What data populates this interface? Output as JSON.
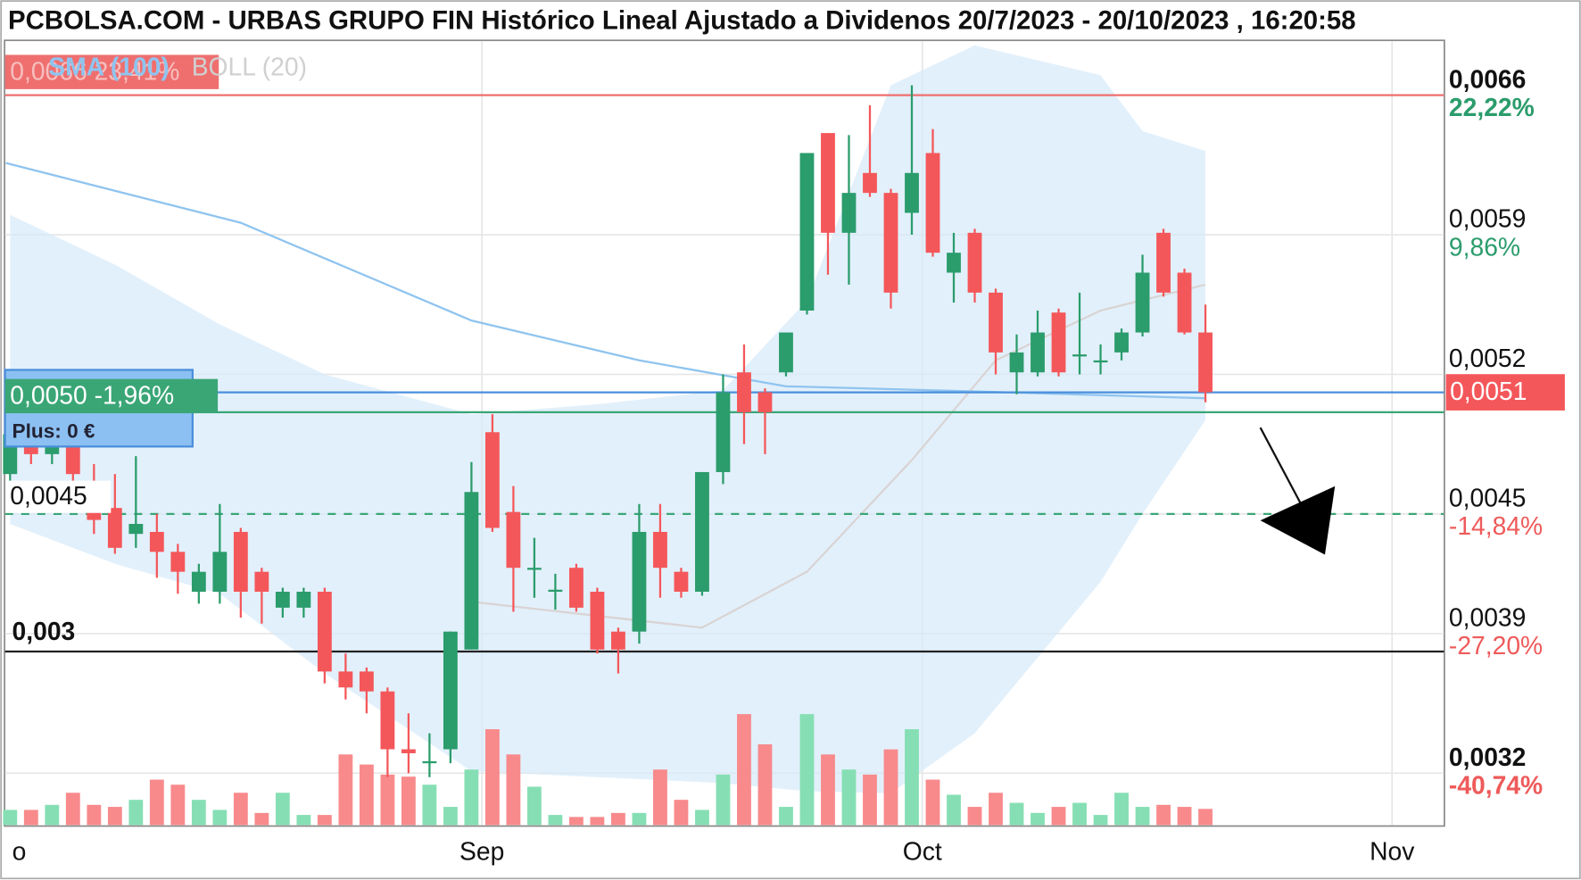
{
  "chart_data": {
    "type": "candlestick",
    "title": "PCBOLSA.COM - URBAS GRUPO FIN Histórico Lineal Ajustado a Dividenos 20/7/2023 - 20/10/2023 , 16:20:58",
    "open": [
      0.0047,
      0.00495,
      0.0048,
      0.0049,
      0.00458,
      0.00453,
      0.0044,
      0.00441,
      0.00431,
      0.00411,
      0.00411,
      0.00441,
      0.00421,
      0.00403,
      0.00403,
      0.00411,
      0.00371,
      0.00371,
      0.00361,
      0.00332,
      0.00325,
      0.00332,
      0.00382,
      0.00491,
      0.00451,
      0.00422,
      0.00411,
      0.00423,
      0.00411,
      0.00391,
      0.00391,
      0.00441,
      0.00421,
      0.00411,
      0.00471,
      0.00521,
      0.00511,
      0.00521,
      0.00552,
      0.00641,
      0.00591,
      0.00621,
      0.00611,
      0.00601,
      0.00631,
      0.00571,
      0.00591,
      0.00561,
      0.00521,
      0.00521,
      0.00551,
      0.00529,
      0.00526,
      0.00531,
      0.00541,
      0.00591,
      0.00571,
      0.00541
    ],
    "high": [
      0.005,
      0.005,
      0.00495,
      0.00495,
      0.00475,
      0.0047,
      0.00479,
      0.0045,
      0.00435,
      0.00425,
      0.00455,
      0.00443,
      0.00423,
      0.00413,
      0.00413,
      0.00413,
      0.0038,
      0.00373,
      0.00363,
      0.0035,
      0.0034,
      0.00391,
      0.00476,
      0.005,
      0.00464,
      0.00438,
      0.0042,
      0.00425,
      0.00413,
      0.00393,
      0.00455,
      0.00455,
      0.00423,
      0.00471,
      0.0052,
      0.00535,
      0.00513,
      0.00541,
      0.00631,
      0.00641,
      0.0064,
      0.00655,
      0.00613,
      0.00665,
      0.00643,
      0.00591,
      0.00593,
      0.00563,
      0.0054,
      0.00552,
      0.00553,
      0.00561,
      0.00535,
      0.00543,
      0.0058,
      0.00593,
      0.00573,
      0.00555
    ],
    "low": [
      0.00465,
      0.00475,
      0.00475,
      0.00465,
      0.0044,
      0.0043,
      0.00433,
      0.00418,
      0.0041,
      0.00405,
      0.00405,
      0.00398,
      0.00395,
      0.00398,
      0.00398,
      0.00365,
      0.00357,
      0.0035,
      0.00318,
      0.0032,
      0.00318,
      0.00325,
      0.00382,
      0.00441,
      0.00401,
      0.00408,
      0.00402,
      0.00401,
      0.0038,
      0.0037,
      0.00385,
      0.00408,
      0.00408,
      0.00409,
      0.00465,
      0.00485,
      0.0048,
      0.00519,
      0.0055,
      0.0057,
      0.00565,
      0.00609,
      0.00553,
      0.0059,
      0.00579,
      0.00556,
      0.00556,
      0.0052,
      0.0051,
      0.00519,
      0.00519,
      0.0052,
      0.0052,
      0.00527,
      0.00539,
      0.00559,
      0.0054,
      0.00506
    ],
    "close": [
      0.0049,
      0.0048,
      0.0049,
      0.0047,
      0.00447,
      0.00433,
      0.00445,
      0.00431,
      0.00421,
      0.00421,
      0.00431,
      0.00411,
      0.00411,
      0.00411,
      0.00411,
      0.00371,
      0.00363,
      0.00361,
      0.00332,
      0.0033,
      0.00326,
      0.00391,
      0.00461,
      0.00443,
      0.00423,
      0.00423,
      0.00412,
      0.00403,
      0.00382,
      0.00382,
      0.00441,
      0.00423,
      0.00411,
      0.00471,
      0.00511,
      0.00501,
      0.00501,
      0.00541,
      0.00631,
      0.00591,
      0.00611,
      0.00611,
      0.00561,
      0.00621,
      0.00581,
      0.00581,
      0.00561,
      0.00531,
      0.00531,
      0.00541,
      0.00521,
      0.0053,
      0.00527,
      0.00541,
      0.00571,
      0.00561,
      0.00541,
      0.00511
    ],
    "volume": [
      15,
      15,
      20,
      32,
      20,
      18,
      25,
      45,
      40,
      25,
      15,
      32,
      12,
      32,
      10,
      10,
      70,
      60,
      50,
      48,
      40,
      18,
      55,
      95,
      70,
      38,
      10,
      8,
      8,
      12,
      12,
      55,
      25,
      15,
      50,
      110,
      80,
      18,
      110,
      70,
      55,
      50,
      75,
      95,
      45,
      30,
      18,
      32,
      22,
      12,
      18,
      22,
      10,
      32,
      18,
      20,
      18,
      16
    ],
    "vlim": [
      0,
      120
    ],
    "up_color": "#2b9c6c",
    "down_color": "#f4575a",
    "up_volume_color": "#86dfb4",
    "down_volume_color": "#f88a8c",
    "xlim": [
      -0.24,
      68.37
    ],
    "xticks": [
      {
        "value": 0.1,
        "label": "o"
      },
      {
        "value": 22.5,
        "label": "Sep"
      },
      {
        "value": 43.5,
        "label": "Oct"
      },
      {
        "value": 65.9,
        "label": "Nov"
      }
    ],
    "ylim": [
      0.00294,
      0.00687
    ],
    "yticks": [
      {
        "value": 0.0066,
        "label": "0,0066"
      },
      {
        "value": 0.0059,
        "label": "0,0059"
      },
      {
        "value": 0.0052,
        "label": "0,0052"
      },
      {
        "value": 0.0045,
        "label": "0,0045"
      },
      {
        "value": 0.0039,
        "label": "0,0039"
      },
      {
        "value": 0.0032,
        "label": "0,0032"
      }
    ],
    "ytick_pcts": [
      "22,22%",
      "9,86%",
      "-14,84%",
      "-27,20%",
      "-40,74%"
    ],
    "ytick_pct_of": [
      0,
      1,
      3,
      4,
      5
    ],
    "grid": true,
    "sma": {
      "name": "SMA (100)",
      "color": "#8fc4ef",
      "x": [
        -0.2,
        11,
        22,
        30,
        37,
        47.6,
        57
      ],
      "values": [
        0.00626,
        0.00596,
        0.00547,
        0.00527,
        0.00514,
        0.00511,
        0.00508
      ]
    },
    "bollinger": {
      "name": "BOLL (20)",
      "color": "#d6eafa",
      "middle_color": "#d9d4d4",
      "x": [
        0,
        5,
        10,
        15,
        22,
        28,
        34,
        38,
        42,
        46,
        52,
        54,
        57
      ],
      "upper": [
        0.006,
        0.00575,
        0.00545,
        0.0052,
        0.005,
        0.00505,
        0.00512,
        0.00557,
        0.00665,
        0.00685,
        0.0067,
        0.00642,
        0.00632
      ],
      "lower": [
        0.00445,
        0.00425,
        0.0041,
        0.0037,
        0.00321,
        0.00318,
        0.00315,
        0.00311,
        0.0031,
        0.0034,
        0.00416,
        0.0045,
        0.00497
      ],
      "middle_x": [
        22,
        33,
        38,
        43,
        47,
        52,
        57
      ],
      "middle": [
        0.00406,
        0.00393,
        0.00421,
        0.00477,
        0.00527,
        0.00552,
        0.00565
      ]
    },
    "levels": [
      {
        "value": 0.0066,
        "color": "#ef6f6f",
        "label": "0,0066 23,41%",
        "side": "left"
      },
      {
        "value": 0.00511,
        "color": "#4a8fdc",
        "label": "0,0051",
        "side": "right",
        "box": "#f4575a"
      },
      {
        "value": 0.00501,
        "color": "#3aa676",
        "label": "0,0050 -1,96%",
        "side": "left",
        "box": "#3aa676"
      },
      {
        "value": 0.00381,
        "color": "#222222",
        "label": "0,003",
        "side": "left-plain"
      },
      {
        "value": 0.0045,
        "color": "#3aa676",
        "label": "0,0045",
        "side": "left-white",
        "dashed": true
      }
    ],
    "note": "Plus: 0 €"
  }
}
